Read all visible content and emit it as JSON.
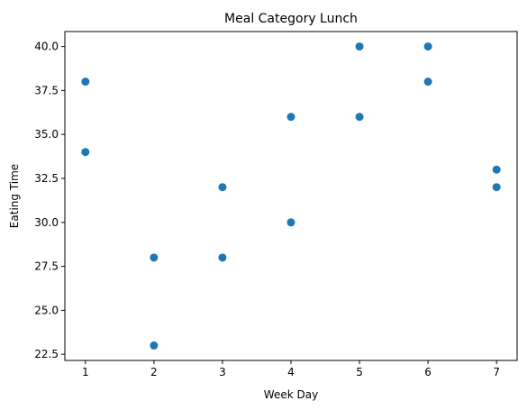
{
  "chart_data": {
    "type": "scatter",
    "title": "Meal Category Lunch",
    "xlabel": "Week Day",
    "ylabel": "Eating Time",
    "xlim": [
      0.7,
      7.3
    ],
    "ylim": [
      22.15,
      40.85
    ],
    "xticks": [
      1,
      2,
      3,
      4,
      5,
      6,
      7
    ],
    "xtick_labels": [
      "1",
      "2",
      "3",
      "4",
      "5",
      "6",
      "7"
    ],
    "yticks": [
      22.5,
      25.0,
      27.5,
      30.0,
      32.5,
      35.0,
      37.5,
      40.0
    ],
    "ytick_labels": [
      "22.5",
      "25.0",
      "27.5",
      "30.0",
      "32.5",
      "35.0",
      "37.5",
      "40.0"
    ],
    "grid": false,
    "marker_color": "#1f77b4",
    "series": [
      {
        "points": [
          {
            "x": 1,
            "y": 38
          },
          {
            "x": 1,
            "y": 34
          },
          {
            "x": 2,
            "y": 28
          },
          {
            "x": 2,
            "y": 23
          },
          {
            "x": 3,
            "y": 32
          },
          {
            "x": 3,
            "y": 28
          },
          {
            "x": 4,
            "y": 36
          },
          {
            "x": 4,
            "y": 30
          },
          {
            "x": 5,
            "y": 40
          },
          {
            "x": 5,
            "y": 36
          },
          {
            "x": 6,
            "y": 40
          },
          {
            "x": 6,
            "y": 38
          },
          {
            "x": 7,
            "y": 33
          },
          {
            "x": 7,
            "y": 32
          }
        ]
      }
    ]
  }
}
